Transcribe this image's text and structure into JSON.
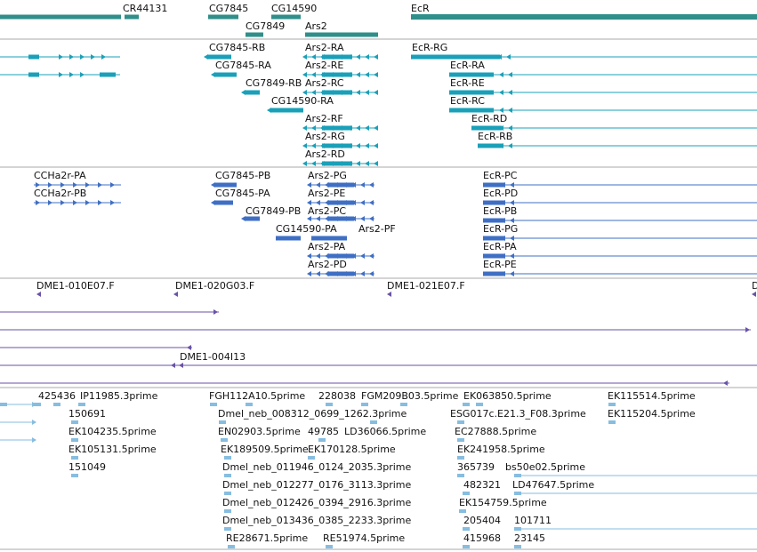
{
  "colors": {
    "gene": "#2f8f8a",
    "transcript_flybase": "#1aa0b8",
    "transcript_refseq": "#3f6fc4",
    "clone": "#6a52a8",
    "est": "#86bde0",
    "divider": "#a8a8a8",
    "text": "#111111"
  },
  "tracks": {
    "genes": {
      "labels": [
        "CR44131",
        "CG7845",
        "CG14590",
        "CG7849",
        "Ars2",
        "EcR"
      ]
    },
    "flybase_transcripts": {
      "labels": [
        "CG7845-RB",
        "Ars2-RA",
        "EcR-RG",
        "CG7845-RA",
        "Ars2-RE",
        "EcR-RA",
        "CG7849-RB",
        "Ars2-RC",
        "EcR-RE",
        "CG14590-RA",
        "EcR-RC",
        "Ars2-RF",
        "EcR-RD",
        "Ars2-RG",
        "EcR-RB",
        "Ars2-RD"
      ]
    },
    "refseq_transcripts": {
      "labels": [
        "CCHa2r-PA",
        "CG7845-PB",
        "Ars2-PG",
        "EcR-PC",
        "CCHa2r-PB",
        "CG7845-PA",
        "Ars2-PE",
        "EcR-PD",
        "CG7849-PB",
        "Ars2-PC",
        "EcR-PB",
        "CG14590-PA",
        "Ars2-PF",
        "EcR-PG",
        "Ars2-PA",
        "EcR-PA",
        "Ars2-PD",
        "EcR-PE"
      ]
    },
    "clones": {
      "labels": [
        "DME1-010E07.F",
        "DME1-020G03.F",
        "DME1-021E07.F",
        "D",
        "DME1-004I13"
      ]
    },
    "ests": {
      "labels": [
        "425436",
        "IP11985.3prime",
        "FGH112A10.5prime",
        "228038",
        "FGM209B03.5prime",
        "EK063850.5prime",
        "EK115514.5prime",
        "150691",
        "Dmel_neb_008312_0699_1262.3prime",
        "ESG017c.E21.3_F08.3prime",
        "EK115204.5prime",
        "EK104235.5prime",
        "EN02903.5prime",
        "49785",
        "LD36066.5prime",
        "EC27888.5prime",
        "EK105131.5prime",
        "EK189509.5prime",
        "EK170128.5prime",
        "EK241958.5prime",
        "151049",
        "Dmel_neb_011946_0124_2035.3prime",
        "365739",
        "bs50e02.5prime",
        "Dmel_neb_012277_0176_3113.3prime",
        "482321",
        "LD47647.5prime",
        "Dmel_neb_012426_0394_2916.3prime",
        "EK154759.5prime",
        "Dmel_neb_013436_0385_2233.3prime",
        "205404",
        "101711",
        "RE28671.5prime",
        "RE51974.5prime",
        "415968",
        "23145"
      ]
    }
  }
}
